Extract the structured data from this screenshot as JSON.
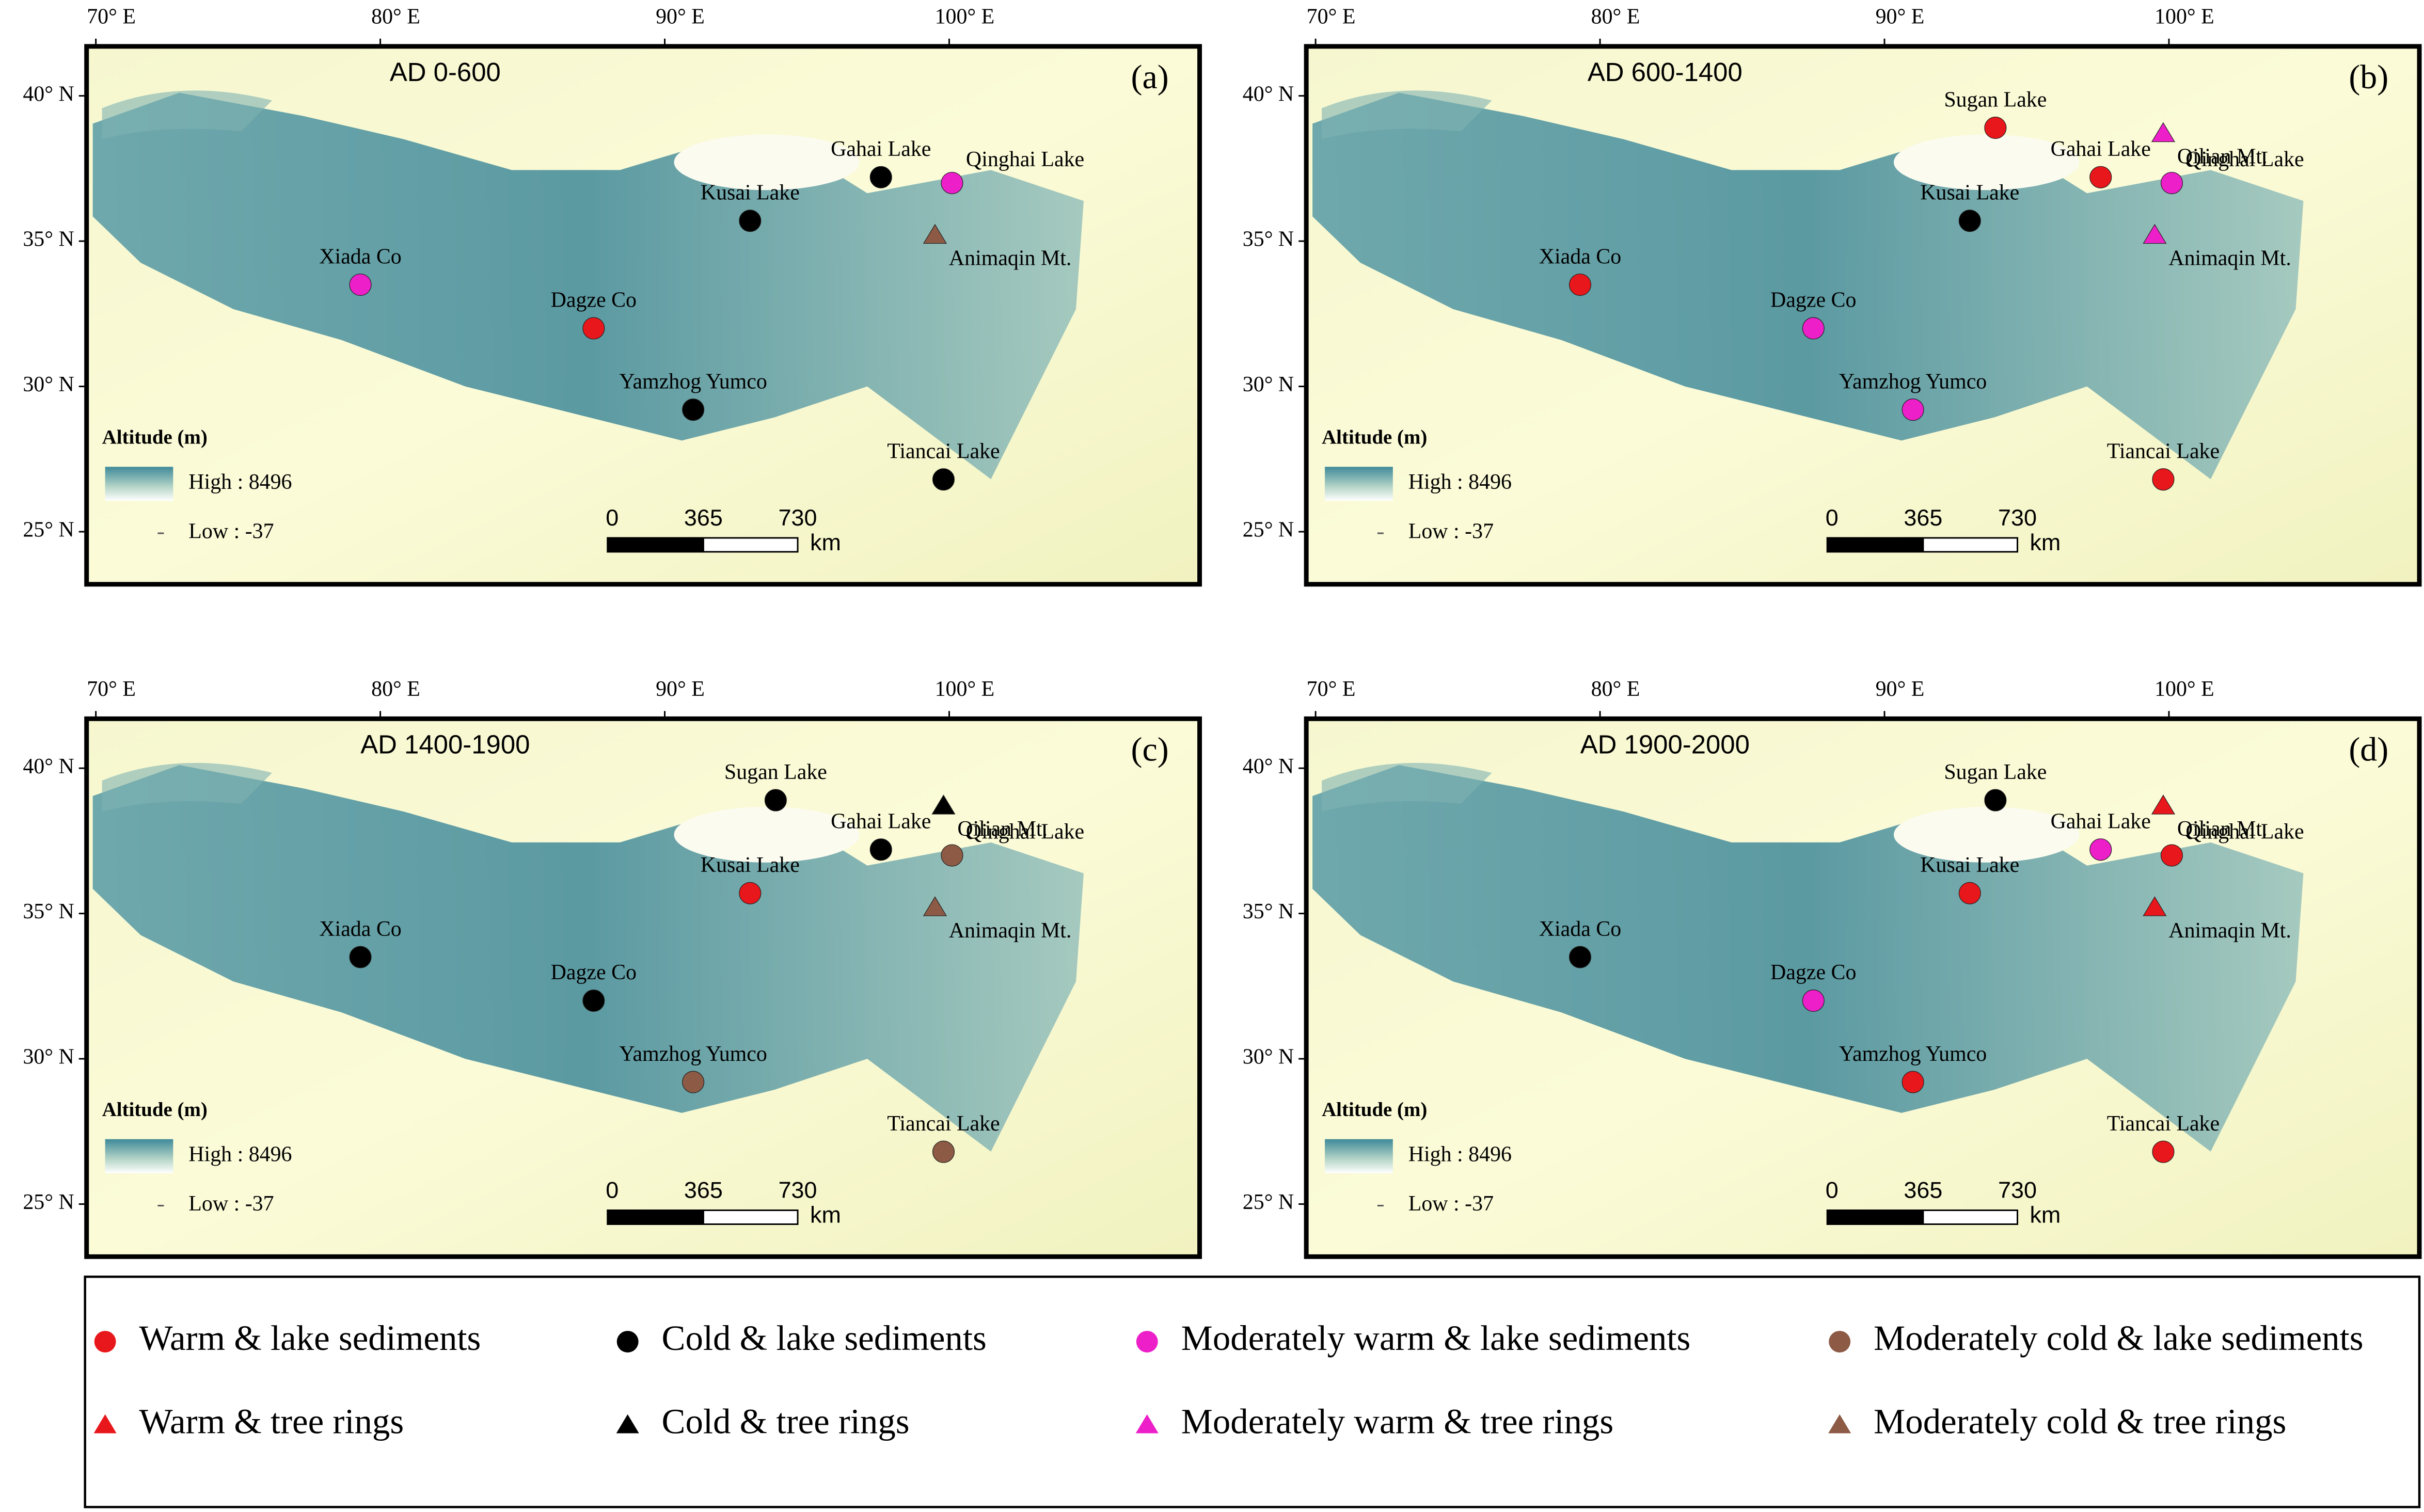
{
  "lon_ticks": [
    {
      "value": 70,
      "label": "70° E"
    },
    {
      "value": 80,
      "label": "80° E"
    },
    {
      "value": 90,
      "label": "90° E"
    },
    {
      "value": 100,
      "label": "100° E"
    }
  ],
  "lat_ticks": [
    {
      "value": 40,
      "label": "40° N"
    },
    {
      "value": 35,
      "label": "35° N"
    },
    {
      "value": 30,
      "label": "30° N"
    },
    {
      "value": 25,
      "label": "25° N"
    }
  ],
  "altitude_legend": {
    "title": "Altitude (m)",
    "high": "High : 8496",
    "low": "Low : -37"
  },
  "scale_bar": {
    "labels": [
      "0",
      "365",
      "730"
    ],
    "unit": "km"
  },
  "panels": [
    {
      "title": "AD 0-600",
      "letter": "(a)",
      "sites": [
        {
          "name": "Gahai Lake",
          "lon": 97.6,
          "lat": 37.2,
          "color": "#000000",
          "marker": "circle"
        },
        {
          "name": "Qinghai Lake",
          "lon": 100.1,
          "lat": 37.0,
          "color": "#ec1fc9",
          "marker": "circle"
        },
        {
          "name": "Kusai Lake",
          "lon": 93.0,
          "lat": 35.7,
          "color": "#000000",
          "marker": "circle"
        },
        {
          "name": "Animaqin Mt.",
          "lon": 99.5,
          "lat": 35.2,
          "color": "#8c5a45",
          "marker": "triangle"
        },
        {
          "name": "Xiada Co",
          "lon": 79.3,
          "lat": 33.5,
          "color": "#ec1fc9",
          "marker": "circle"
        },
        {
          "name": "Dagze Co",
          "lon": 87.5,
          "lat": 32.0,
          "color": "#e8171b",
          "marker": "circle"
        },
        {
          "name": "Yamzhog Yumco",
          "lon": 91.0,
          "lat": 29.2,
          "color": "#000000",
          "marker": "circle"
        },
        {
          "name": "Tiancai Lake",
          "lon": 99.8,
          "lat": 26.8,
          "color": "#000000",
          "marker": "circle"
        }
      ]
    },
    {
      "title": "AD 600-1400",
      "letter": "(b)",
      "sites": [
        {
          "name": "Gahai Lake",
          "lon": 97.6,
          "lat": 37.2,
          "color": "#e8171b",
          "marker": "circle"
        },
        {
          "name": "Qinghai Lake",
          "lon": 100.1,
          "lat": 37.0,
          "color": "#ec1fc9",
          "marker": "circle"
        },
        {
          "name": "Kusai Lake",
          "lon": 93.0,
          "lat": 35.7,
          "color": "#000000",
          "marker": "circle"
        },
        {
          "name": "Animaqin Mt.",
          "lon": 99.5,
          "lat": 35.2,
          "color": "#ec1fc9",
          "marker": "triangle"
        },
        {
          "name": "Xiada Co",
          "lon": 79.3,
          "lat": 33.5,
          "color": "#e8171b",
          "marker": "circle"
        },
        {
          "name": "Dagze Co",
          "lon": 87.5,
          "lat": 32.0,
          "color": "#ec1fc9",
          "marker": "circle"
        },
        {
          "name": "Yamzhog Yumco",
          "lon": 91.0,
          "lat": 29.2,
          "color": "#ec1fc9",
          "marker": "circle"
        },
        {
          "name": "Tiancai Lake",
          "lon": 99.8,
          "lat": 26.8,
          "color": "#e8171b",
          "marker": "circle"
        },
        {
          "name": "Sugan Lake",
          "lon": 93.9,
          "lat": 38.9,
          "color": "#e8171b",
          "marker": "circle"
        },
        {
          "name": "Qilian Mt.",
          "lon": 99.8,
          "lat": 38.7,
          "color": "#ec1fc9",
          "marker": "triangle"
        }
      ]
    },
    {
      "title": "AD 1400-1900",
      "letter": "(c)",
      "sites": [
        {
          "name": "Gahai Lake",
          "lon": 97.6,
          "lat": 37.2,
          "color": "#000000",
          "marker": "circle"
        },
        {
          "name": "Qinghai Lake",
          "lon": 100.1,
          "lat": 37.0,
          "color": "#8c5a45",
          "marker": "circle"
        },
        {
          "name": "Kusai Lake",
          "lon": 93.0,
          "lat": 35.7,
          "color": "#e8171b",
          "marker": "circle"
        },
        {
          "name": "Animaqin Mt.",
          "lon": 99.5,
          "lat": 35.2,
          "color": "#8c5a45",
          "marker": "triangle"
        },
        {
          "name": "Xiada Co",
          "lon": 79.3,
          "lat": 33.5,
          "color": "#000000",
          "marker": "circle"
        },
        {
          "name": "Dagze Co",
          "lon": 87.5,
          "lat": 32.0,
          "color": "#000000",
          "marker": "circle"
        },
        {
          "name": "Yamzhog Yumco",
          "lon": 91.0,
          "lat": 29.2,
          "color": "#8c5a45",
          "marker": "circle"
        },
        {
          "name": "Tiancai Lake",
          "lon": 99.8,
          "lat": 26.8,
          "color": "#8c5a45",
          "marker": "circle"
        },
        {
          "name": "Sugan Lake",
          "lon": 93.9,
          "lat": 38.9,
          "color": "#000000",
          "marker": "circle"
        },
        {
          "name": "Qilian Mt.",
          "lon": 99.8,
          "lat": 38.7,
          "color": "#000000",
          "marker": "triangle"
        }
      ]
    },
    {
      "title": "AD 1900-2000",
      "letter": "(d)",
      "sites": [
        {
          "name": "Gahai Lake",
          "lon": 97.6,
          "lat": 37.2,
          "color": "#ec1fc9",
          "marker": "circle"
        },
        {
          "name": "Qinghai Lake",
          "lon": 100.1,
          "lat": 37.0,
          "color": "#e8171b",
          "marker": "circle"
        },
        {
          "name": "Kusai Lake",
          "lon": 93.0,
          "lat": 35.7,
          "color": "#e8171b",
          "marker": "circle"
        },
        {
          "name": "Animaqin Mt.",
          "lon": 99.5,
          "lat": 35.2,
          "color": "#e8171b",
          "marker": "triangle"
        },
        {
          "name": "Xiada Co",
          "lon": 79.3,
          "lat": 33.5,
          "color": "#000000",
          "marker": "circle"
        },
        {
          "name": "Dagze Co",
          "lon": 87.5,
          "lat": 32.0,
          "color": "#ec1fc9",
          "marker": "circle"
        },
        {
          "name": "Yamzhog Yumco",
          "lon": 91.0,
          "lat": 29.2,
          "color": "#e8171b",
          "marker": "circle"
        },
        {
          "name": "Tiancai Lake",
          "lon": 99.8,
          "lat": 26.8,
          "color": "#e8171b",
          "marker": "circle"
        },
        {
          "name": "Sugan Lake",
          "lon": 93.9,
          "lat": 38.9,
          "color": "#000000",
          "marker": "circle"
        },
        {
          "name": "Qilian Mt.",
          "lon": 99.8,
          "lat": 38.7,
          "color": "#e8171b",
          "marker": "triangle"
        }
      ]
    }
  ],
  "legend": [
    {
      "label": "Warm & lake sediments",
      "color": "#e8171b",
      "marker": "circle"
    },
    {
      "label": "Warm & tree rings",
      "color": "#e8171b",
      "marker": "triangle"
    },
    {
      "label": "Cold & lake sediments",
      "color": "#000000",
      "marker": "circle"
    },
    {
      "label": "Cold & tree rings",
      "color": "#000000",
      "marker": "triangle"
    },
    {
      "label": "Moderately warm & lake sediments",
      "color": "#ec1fc9",
      "marker": "circle"
    },
    {
      "label": "Moderately warm & tree rings",
      "color": "#ec1fc9",
      "marker": "triangle"
    },
    {
      "label": "Moderately cold & lake sediments",
      "color": "#8c5a45",
      "marker": "circle"
    },
    {
      "label": "Moderately cold & tree rings",
      "color": "#8c5a45",
      "marker": "triangle"
    }
  ]
}
